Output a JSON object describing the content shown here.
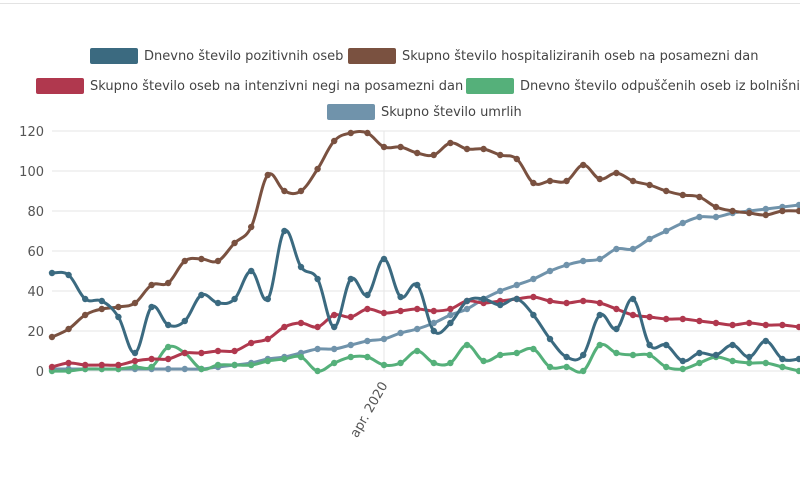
{
  "chart_data": {
    "type": "line",
    "x_label_visible": "apr. 2020",
    "ylim": [
      0,
      120
    ],
    "yticks": [
      0,
      20,
      40,
      60,
      80,
      100,
      120
    ],
    "grid": true,
    "legend_position": "top",
    "series": [
      {
        "name": "Dnevno število pozitivnih oseb",
        "color": "#3b6a80",
        "values": [
          49,
          48,
          36,
          35,
          27,
          9,
          32,
          23,
          25,
          38,
          34,
          36,
          50,
          36,
          70,
          52,
          46,
          22,
          46,
          38,
          56,
          37,
          43,
          20,
          24,
          35,
          36,
          33,
          36,
          28,
          16,
          7,
          8,
          28,
          21,
          36,
          13,
          13,
          5,
          9,
          8,
          13,
          7,
          15,
          6,
          6
        ]
      },
      {
        "name": "Skupno število hospitaliziranih oseb na posamezni dan",
        "color": "#7a5140",
        "values": [
          17,
          21,
          28,
          31,
          32,
          34,
          43,
          44,
          55,
          56,
          55,
          64,
          72,
          98,
          90,
          90,
          101,
          115,
          119,
          119,
          112,
          112,
          109,
          108,
          114,
          111,
          111,
          108,
          106,
          94,
          95,
          95,
          103,
          96,
          99,
          95,
          93,
          90,
          88,
          87,
          82,
          80,
          79,
          78,
          80,
          80
        ]
      },
      {
        "name": "Skupno število oseb na intenzivni negi na posamezni dan",
        "color": "#b0384e",
        "values": [
          2,
          4,
          3,
          3,
          3,
          5,
          6,
          6,
          9,
          9,
          10,
          10,
          14,
          16,
          22,
          24,
          22,
          28,
          27,
          31,
          29,
          30,
          31,
          30,
          31,
          35,
          34,
          35,
          36,
          37,
          35,
          34,
          35,
          34,
          31,
          28,
          27,
          26,
          26,
          25,
          24,
          23,
          24,
          23,
          23,
          22
        ]
      },
      {
        "name": "Dnevno število odpuščenih oseb iz bolnišnic",
        "color": "#55b07a",
        "values": [
          0,
          0,
          1,
          1,
          1,
          2,
          2,
          12,
          9,
          1,
          3,
          3,
          3,
          5,
          6,
          7,
          0,
          4,
          7,
          7,
          3,
          4,
          10,
          4,
          4,
          13,
          5,
          8,
          9,
          11,
          2,
          2,
          0,
          13,
          9,
          8,
          8,
          2,
          1,
          4,
          7,
          5,
          4,
          4,
          2,
          0
        ]
      },
      {
        "name": "Skupno število umrlih",
        "color": "#7093ab",
        "values": [
          1,
          1,
          1,
          1,
          1,
          1,
          1,
          1,
          1,
          1,
          2,
          3,
          4,
          6,
          7,
          9,
          11,
          11,
          13,
          15,
          16,
          19,
          21,
          24,
          28,
          31,
          36,
          40,
          43,
          46,
          50,
          53,
          55,
          56,
          61,
          61,
          66,
          70,
          74,
          77,
          77,
          79,
          80,
          81,
          82,
          83
        ]
      }
    ]
  }
}
